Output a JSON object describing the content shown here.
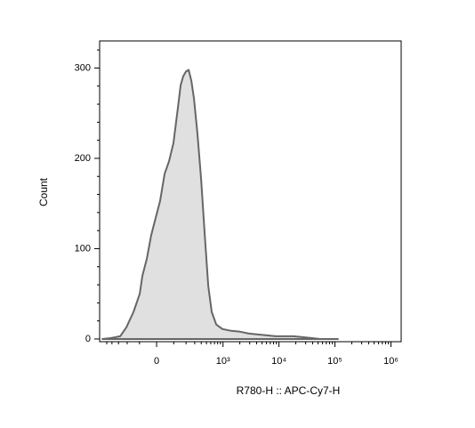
{
  "chart_data": {
    "type": "area",
    "x_label": "R780-H :: APC-Cy7-H",
    "y_label": "Count",
    "xscale": "biexponential",
    "x": [
      -601,
      -413,
      -278,
      -208,
      -144,
      -98,
      -81,
      -54,
      -29,
      -5,
      19,
      44,
      70,
      98,
      130,
      152,
      174,
      199,
      227,
      257,
      290,
      339,
      397,
      462,
      538,
      625,
      753,
      976,
      1408,
      2030,
      2930,
      4220,
      6090,
      8780,
      12640,
      18210,
      26200,
      37700,
      54400,
      78600,
      113000
    ],
    "values": [
      0,
      1,
      3,
      13,
      30,
      50,
      70,
      89,
      115,
      134,
      153,
      183,
      197,
      217,
      256,
      281,
      291,
      296,
      298,
      286,
      266,
      227,
      177,
      118,
      59,
      30,
      16,
      11,
      9,
      8,
      6,
      5,
      4,
      3,
      3,
      3,
      2,
      1,
      0,
      0,
      0
    ],
    "color": "#e0e0e0",
    "line_color": "#666666",
    "xlim": [
      -675,
      1520000
    ],
    "ylim": [
      -3,
      330
    ],
    "xticks": [
      {
        "value": 0,
        "label": "0"
      },
      {
        "value": 1000,
        "label": "10³"
      },
      {
        "value": 10000,
        "label": "10⁴"
      },
      {
        "value": 100000,
        "label": "10⁵"
      },
      {
        "value": 1000000,
        "label": "10⁶"
      }
    ],
    "xminorticks": [
      -500,
      -400,
      -300,
      -200,
      -100,
      100,
      200,
      300,
      400,
      500,
      600,
      700,
      800,
      900,
      2000,
      3000,
      4000,
      5000,
      6000,
      7000,
      8000,
      9000,
      20000,
      30000,
      40000,
      50000,
      60000,
      70000,
      80000,
      90000,
      200000,
      300000,
      400000,
      500000,
      600000,
      700000,
      800000,
      900000
    ],
    "yticks": [
      0,
      100,
      200,
      300
    ],
    "yminorticks": [
      20,
      40,
      60,
      80,
      120,
      140,
      160,
      180,
      220,
      240,
      260,
      280,
      320
    ]
  }
}
